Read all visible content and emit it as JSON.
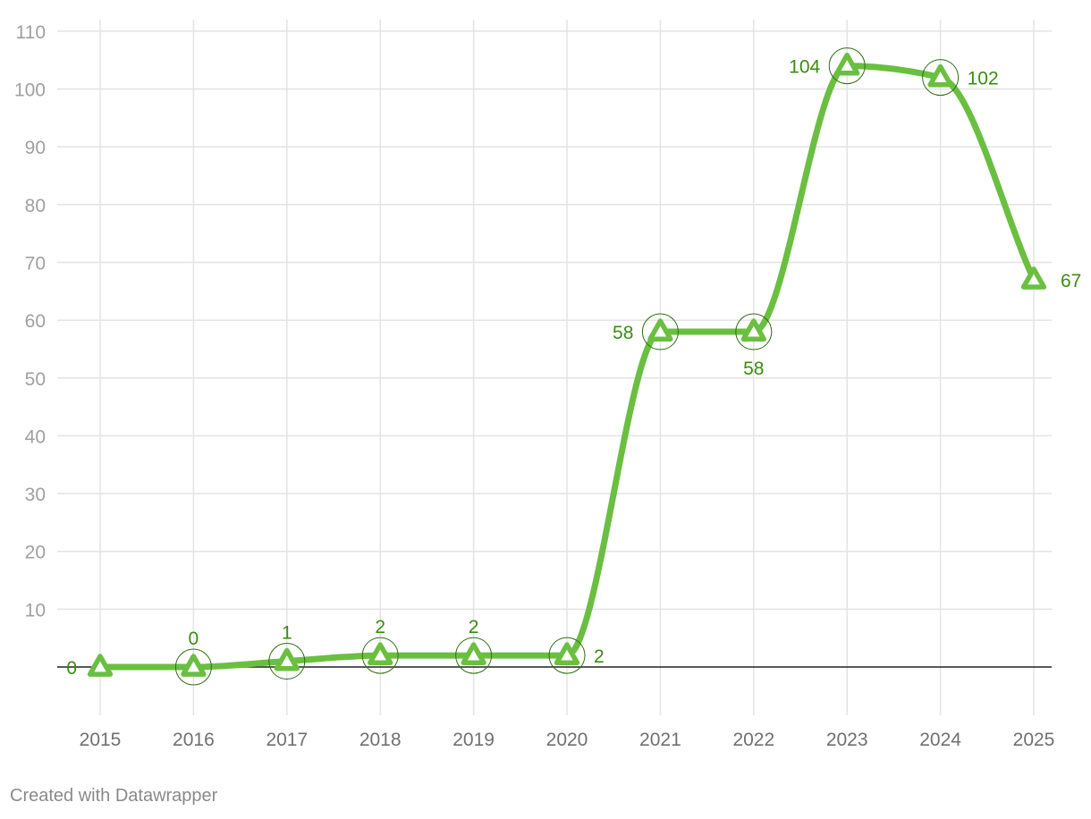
{
  "chart_data": {
    "type": "line",
    "x": [
      "2015",
      "2016",
      "2017",
      "2018",
      "2019",
      "2020",
      "2021",
      "2022",
      "2023",
      "2024",
      "2025"
    ],
    "series": [
      {
        "values": [
          0,
          0,
          1,
          2,
          2,
          2,
          58,
          58,
          104,
          102,
          67
        ]
      }
    ],
    "data_labels": [
      "0",
      "0",
      "1",
      "2",
      "2",
      "2",
      "58",
      "58",
      "104",
      "102",
      "67"
    ],
    "y_ticks": [
      10,
      20,
      30,
      40,
      50,
      60,
      70,
      80,
      90,
      100,
      110
    ],
    "ylim": [
      -8,
      113
    ],
    "title": "",
    "xlabel": "",
    "ylabel": "",
    "grid": true,
    "marker": "triangle-up",
    "line_shape": "smooth",
    "colors": {
      "line": "#6abf40",
      "label": "#3a8c12",
      "grid": "#e3e3e3",
      "baseline": "#222222"
    }
  },
  "footer": {
    "credit": "Created with Datawrapper"
  }
}
